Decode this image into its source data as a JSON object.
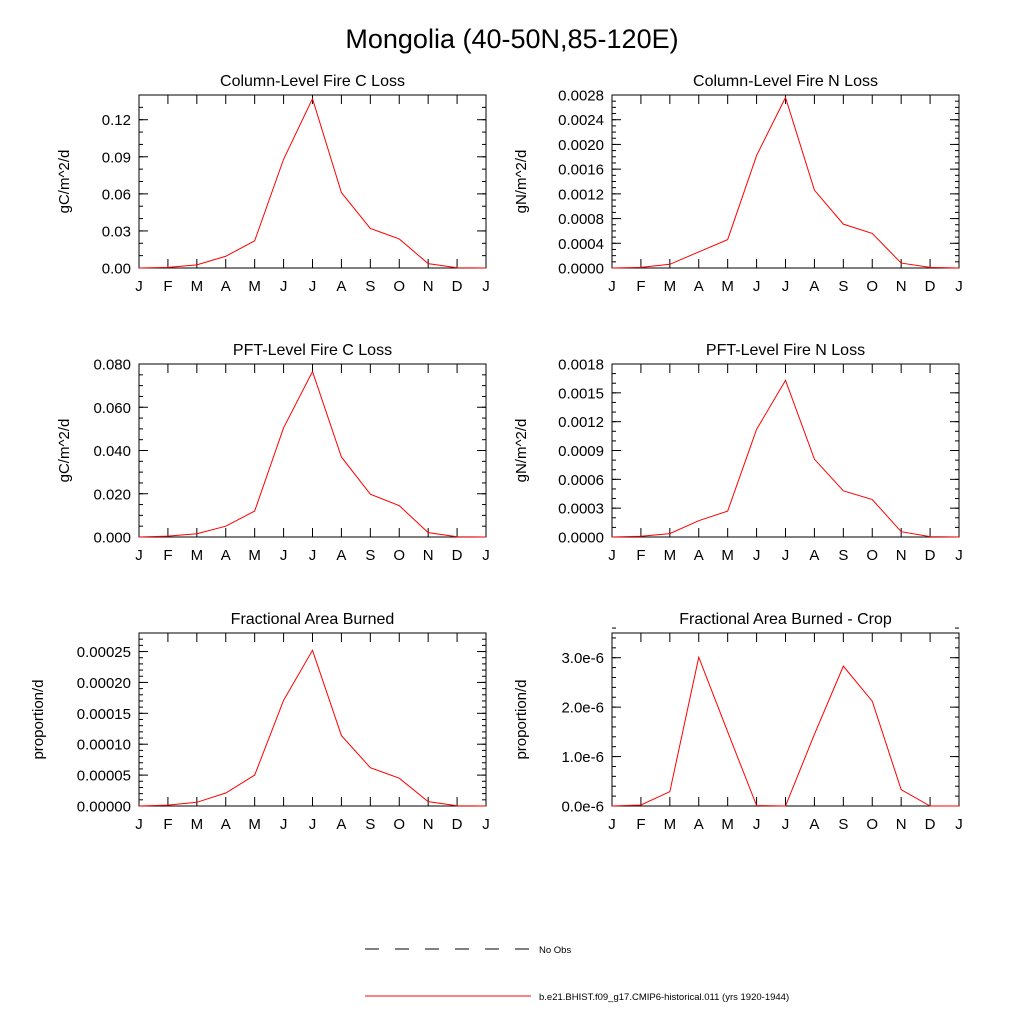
{
  "page": {
    "title": "Mongolia (40-50N,85-120E)"
  },
  "months": [
    "J",
    "F",
    "M",
    "A",
    "M",
    "J",
    "J",
    "A",
    "S",
    "O",
    "N",
    "D",
    "J"
  ],
  "chart_data": [
    {
      "type": "line",
      "title": "Column-Level Fire C Loss",
      "ylabel": "gC/m^2/d",
      "ylim": [
        0,
        0.14
      ],
      "yticks": [
        "0.00",
        "0.03",
        "0.06",
        "0.09",
        "0.12"
      ],
      "ytick_values": [
        0,
        0.03,
        0.06,
        0.09,
        0.12
      ],
      "minor_step": 0.01,
      "values": [
        0.0,
        0.0005,
        0.0025,
        0.0095,
        0.022,
        0.088,
        0.137,
        0.061,
        0.032,
        0.0235,
        0.0035,
        0.0002,
        0.0
      ]
    },
    {
      "type": "line",
      "title": "Column-Level Fire N Loss",
      "ylabel": "gN/m^2/d",
      "ylim": [
        0,
        0.0028
      ],
      "yticks": [
        "0.0000",
        "0.0004",
        "0.0008",
        "0.0012",
        "0.0016",
        "0.0020",
        "0.0024",
        "0.0028"
      ],
      "ytick_values": [
        0,
        0.0004,
        0.0008,
        0.0012,
        0.0016,
        0.002,
        0.0024,
        0.0028
      ],
      "minor_step": 0.0001,
      "values": [
        0.0,
        1e-05,
        6e-05,
        0.00026,
        0.00046,
        0.00182,
        0.00276,
        0.00126,
        0.00071,
        0.00056,
        8e-05,
        1e-05,
        0.0
      ]
    },
    {
      "type": "line",
      "title": "PFT-Level Fire C Loss",
      "ylabel": "gC/m^2/d",
      "ylim": [
        0,
        0.08
      ],
      "yticks": [
        "0.000",
        "0.020",
        "0.040",
        "0.060",
        "0.080"
      ],
      "ytick_values": [
        0,
        0.02,
        0.04,
        0.06,
        0.08
      ],
      "minor_step": 0.005,
      "values": [
        0.0,
        0.0004,
        0.0015,
        0.005,
        0.012,
        0.0505,
        0.0765,
        0.037,
        0.0198,
        0.0145,
        0.002,
        0.0001,
        0.0
      ]
    },
    {
      "type": "line",
      "title": "PFT-Level Fire N Loss",
      "ylabel": "gN/m^2/d",
      "ylim": [
        0,
        0.0018
      ],
      "yticks": [
        "0.0000",
        "0.0003",
        "0.0006",
        "0.0009",
        "0.0012",
        "0.0015",
        "0.0018"
      ],
      "ytick_values": [
        0,
        0.0003,
        0.0006,
        0.0009,
        0.0012,
        0.0015,
        0.0018
      ],
      "minor_step": 0.0001,
      "values": [
        0.0,
        8e-06,
        3.5e-05,
        0.00017,
        0.00027,
        0.00112,
        0.00163,
        0.00081,
        0.00048,
        0.00039,
        5.5e-05,
        4e-06,
        0.0
      ]
    },
    {
      "type": "line",
      "title": "Fractional Area Burned",
      "ylabel": "proportion/d",
      "ylim": [
        0,
        0.00028
      ],
      "yticks": [
        "0.00000",
        "0.00005",
        "0.00010",
        "0.00015",
        "0.00020",
        "0.00025"
      ],
      "ytick_values": [
        0,
        5e-05,
        0.0001,
        0.00015,
        0.0002,
        0.00025
      ],
      "minor_step": 1e-05,
      "values": [
        0.0,
        1.5e-06,
        6e-06,
        2.1e-05,
        5e-05,
        0.000171,
        0.000252,
        0.000114,
        6.2e-05,
        4.5e-05,
        7e-06,
        5e-07,
        0.0
      ]
    },
    {
      "type": "line",
      "title": "Fractional Area Burned - Crop",
      "ylabel": "proportion/d",
      "ylim": [
        0,
        3.5e-06
      ],
      "yticks": [
        "0.0e-6",
        "1.0e-6",
        "2.0e-6",
        "3.0e-6"
      ],
      "ytick_values": [
        0,
        1e-06,
        2e-06,
        3e-06
      ],
      "minor_step": 2e-07,
      "values": [
        0.0,
        2e-08,
        2.9e-07,
        3.01e-06,
        1.5e-06,
        1e-08,
        0.0,
        1.45e-06,
        2.83e-06,
        2.12e-06,
        3.3e-07,
        0.0,
        0.0
      ]
    }
  ],
  "legend": {
    "items": [
      {
        "label": "No Obs",
        "style": "dashed",
        "color": "#000000"
      },
      {
        "label": "b.e21.BHIST.f09_g17.CMIP6-historical.011 (yrs 1920-1944)",
        "style": "solid",
        "color": "#ff0000"
      }
    ]
  },
  "colors": {
    "series": "#ff0000",
    "axes": "#000000"
  }
}
